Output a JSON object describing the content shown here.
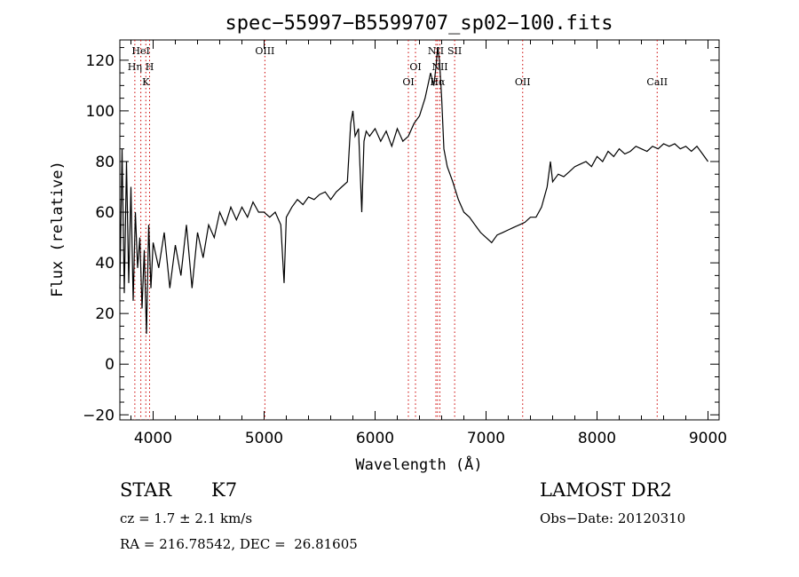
{
  "chart_data": {
    "type": "line",
    "title": "spec−55997−B5599707_sp02−100.fits",
    "xlabel": "Wavelength (Å)",
    "ylabel": "Flux (relative)",
    "xlim": [
      3700,
      9100
    ],
    "ylim": [
      -22,
      128
    ],
    "xticks": [
      4000,
      5000,
      6000,
      7000,
      8000,
      9000
    ],
    "yticks": [
      -20,
      0,
      20,
      40,
      60,
      80,
      100,
      120
    ],
    "ytick_labels": [
      "−20",
      "0",
      "20",
      "40",
      "60",
      "80",
      "100",
      "120"
    ],
    "grid": false,
    "line_color": "#000000",
    "marker_color": "#cc0000",
    "series": [
      {
        "x": [
          3700,
          3720,
          3740,
          3760,
          3780,
          3800,
          3820,
          3840,
          3860,
          3880,
          3900,
          3920,
          3940,
          3960,
          3980,
          4000,
          4050,
          4100,
          4150,
          4200,
          4250,
          4300,
          4350,
          4400,
          4450,
          4500,
          4550,
          4600,
          4650,
          4700,
          4750,
          4800,
          4850,
          4900,
          4950,
          5000,
          5050,
          5100,
          5150,
          5180,
          5200,
          5250,
          5300,
          5350,
          5400,
          5450,
          5500,
          5550,
          5600,
          5650,
          5700,
          5750,
          5780,
          5800,
          5820,
          5850,
          5880,
          5900,
          5920,
          5950,
          6000,
          6050,
          6100,
          6150,
          6200,
          6250,
          6300,
          6350,
          6400,
          6450,
          6500,
          6530,
          6550,
          6563,
          6580,
          6600,
          6620,
          6650,
          6700,
          6750,
          6800,
          6850,
          6900,
          6950,
          7000,
          7050,
          7100,
          7150,
          7200,
          7250,
          7300,
          7350,
          7400,
          7450,
          7500,
          7550,
          7580,
          7600,
          7650,
          7700,
          7750,
          7800,
          7850,
          7900,
          7950,
          8000,
          8050,
          8100,
          8150,
          8200,
          8250,
          8300,
          8350,
          8400,
          8450,
          8500,
          8550,
          8600,
          8650,
          8700,
          8750,
          8800,
          8850,
          8900,
          8950,
          9000
        ],
        "y": [
          30,
          85,
          28,
          80,
          32,
          70,
          25,
          60,
          38,
          50,
          22,
          45,
          12,
          55,
          30,
          48,
          38,
          52,
          30,
          47,
          35,
          55,
          30,
          52,
          42,
          55,
          50,
          60,
          55,
          62,
          57,
          62,
          58,
          64,
          60,
          60,
          58,
          60,
          55,
          32,
          58,
          62,
          65,
          63,
          66,
          65,
          67,
          68,
          65,
          68,
          70,
          72,
          95,
          100,
          90,
          93,
          60,
          88,
          92,
          90,
          93,
          88,
          92,
          86,
          93,
          88,
          90,
          95,
          98,
          105,
          115,
          110,
          118,
          125,
          120,
          105,
          85,
          78,
          72,
          65,
          60,
          58,
          55,
          52,
          50,
          48,
          51,
          52,
          53,
          54,
          55,
          56,
          58,
          58,
          62,
          70,
          80,
          72,
          75,
          74,
          76,
          78,
          79,
          80,
          78,
          82,
          80,
          84,
          82,
          85,
          83,
          84,
          86,
          85,
          84,
          86,
          85,
          87,
          86,
          87,
          85,
          86,
          84,
          86,
          83,
          80
        ]
      }
    ],
    "lines": [
      {
        "label": "HeI",
        "wavelength": 3889,
        "row": 1
      },
      {
        "label": "Hη",
        "wavelength": 3835,
        "row": 2
      },
      {
        "label": "H",
        "wavelength": 3968,
        "row": 2
      },
      {
        "label": "K",
        "wavelength": 3934,
        "row": 3
      },
      {
        "label": "OIII",
        "wavelength": 5007,
        "row": 1
      },
      {
        "label": "OI",
        "wavelength": 6364,
        "row": 2
      },
      {
        "label": "OI",
        "wavelength": 6300,
        "row": 3
      },
      {
        "label": "NII",
        "wavelength": 6548,
        "row": 1
      },
      {
        "label": "SII",
        "wavelength": 6717,
        "row": 1
      },
      {
        "label": "NII",
        "wavelength": 6584,
        "row": 2
      },
      {
        "label": "Hα",
        "wavelength": 6563,
        "row": 3
      },
      {
        "label": "OII",
        "wavelength": 7330,
        "row": 3
      },
      {
        "label": "CaII",
        "wavelength": 8542,
        "row": 3
      }
    ]
  },
  "info": {
    "class": "STAR",
    "subclass": "K7",
    "survey": "LAMOST DR2",
    "cz": "cz = 1.7 ± 2.1 km/s",
    "obs_date": "Obs−Date: 20120310",
    "radec": "RA = 216.78542, DEC =  26.81605"
  }
}
